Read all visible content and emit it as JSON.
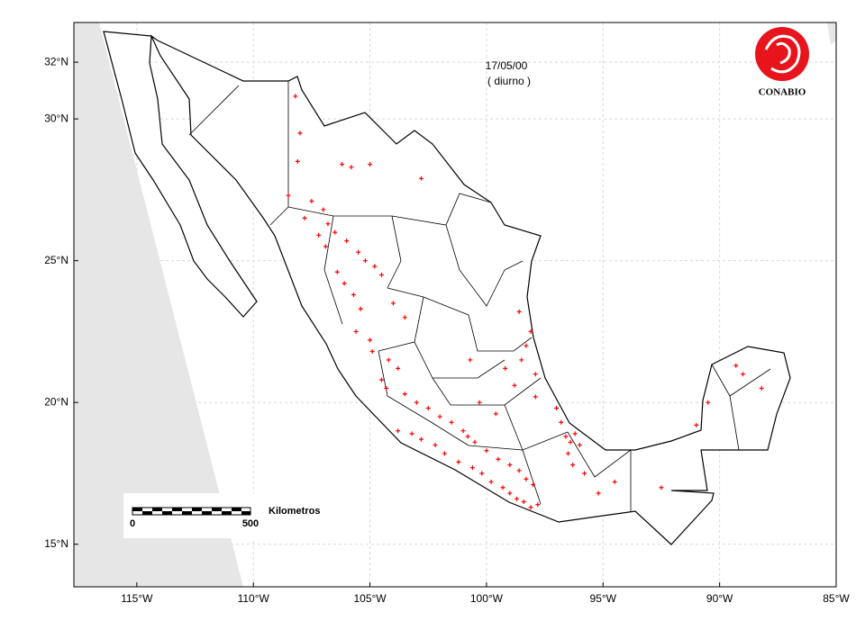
{
  "chart_data": {
    "type": "scatter",
    "date": "17/05/00",
    "period": "( diurno )",
    "logo": "CONABIO",
    "scale_bar": {
      "start": "0",
      "end": "500",
      "unit": "Kilometros"
    },
    "color": "#ff0000",
    "grid": true,
    "xlim": [
      -117.7,
      -85
    ],
    "ylim": [
      13.5,
      33.4
    ],
    "xticks": [
      {
        "value": -115,
        "label": "115°W"
      },
      {
        "value": -110,
        "label": "110°W"
      },
      {
        "value": -105,
        "label": "105°W"
      },
      {
        "value": -100,
        "label": "100°W"
      },
      {
        "value": -95,
        "label": "95°W"
      },
      {
        "value": -90,
        "label": "90°W"
      },
      {
        "value": -85,
        "label": "85°W"
      }
    ],
    "yticks": [
      {
        "value": 32,
        "label": "32°N"
      },
      {
        "value": 30,
        "label": "30°N"
      },
      {
        "value": 25,
        "label": "25°N"
      },
      {
        "value": 20,
        "label": "20°N"
      },
      {
        "value": 15,
        "label": "15°N"
      }
    ],
    "x": [
      -108.2,
      -108.0,
      -108.1,
      -106.2,
      -105.8,
      -105.0,
      -102.8,
      -108.5,
      -107.5,
      -107.0,
      -106.8,
      -106.5,
      -106.0,
      -105.5,
      -105.2,
      -104.8,
      -104.5,
      -107.8,
      -107.2,
      -106.9,
      -106.4,
      -106.1,
      -105.7,
      -105.4,
      -105.6,
      -105.0,
      -104.9,
      -104.2,
      -103.8,
      -104.5,
      -104.3,
      -103.5,
      -103.0,
      -102.5,
      -102.0,
      -101.5,
      -101.0,
      -103.8,
      -103.2,
      -102.8,
      -102.2,
      -101.8,
      -101.2,
      -100.6,
      -100.2,
      -99.8,
      -99.3,
      -99.0,
      -98.7,
      -98.4,
      -98.1,
      -97.8,
      -100.8,
      -100.5,
      -100.0,
      -99.5,
      -99.0,
      -98.6,
      -98.3,
      -98.0,
      -97.9,
      -98.5,
      -98.3,
      -98.1,
      -98.6,
      -97.9,
      -98.8,
      -99.2,
      -96.6,
      -96.4,
      -96.2,
      -96.0,
      -96.5,
      -96.3,
      -95.8,
      -95.2,
      -97.0,
      -96.8,
      -94.5,
      -92.5,
      -91.0,
      -89.0,
      -89.3,
      -88.2,
      -90.5,
      -100.3,
      -100.7,
      -99.6,
      -103.5,
      -104.0
    ],
    "values": [
      30.8,
      29.5,
      28.5,
      28.4,
      28.3,
      28.4,
      27.9,
      27.3,
      27.1,
      26.8,
      26.3,
      26.0,
      25.7,
      25.3,
      25.0,
      24.8,
      24.5,
      26.5,
      25.9,
      25.5,
      24.6,
      24.2,
      23.8,
      23.3,
      22.5,
      22.2,
      21.8,
      21.5,
      21.2,
      20.8,
      20.5,
      20.3,
      20.0,
      19.8,
      19.5,
      19.3,
      19.0,
      19.0,
      18.9,
      18.7,
      18.5,
      18.2,
      17.9,
      17.7,
      17.5,
      17.2,
      17.0,
      16.8,
      16.6,
      16.5,
      16.3,
      16.4,
      18.8,
      18.6,
      18.3,
      18.0,
      17.8,
      17.6,
      17.3,
      17.1,
      21.0,
      21.5,
      22.0,
      22.5,
      23.2,
      20.2,
      20.6,
      21.2,
      18.8,
      18.6,
      18.9,
      18.5,
      18.2,
      17.8,
      17.5,
      16.8,
      19.8,
      19.3,
      17.2,
      17.0,
      19.2,
      21.0,
      21.3,
      20.5,
      20.0,
      20.0,
      21.5,
      19.6,
      23.0,
      23.5
    ]
  }
}
